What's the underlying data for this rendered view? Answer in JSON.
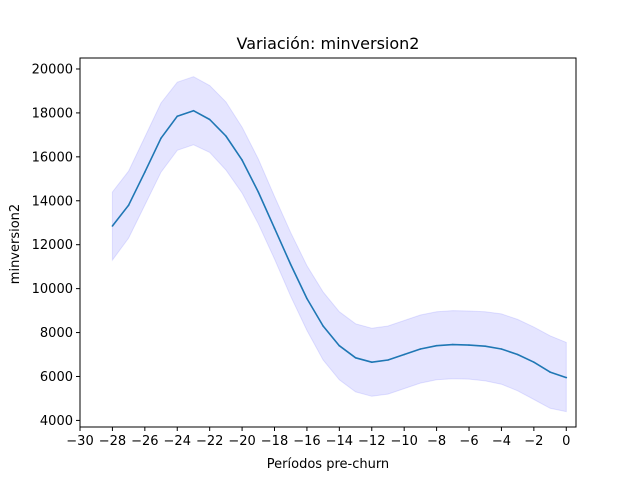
{
  "chart_data": {
    "type": "line",
    "title": "Variación: minversion2",
    "xlabel": "Períodos pre-churn",
    "ylabel": "minversion2",
    "xlim": [
      -30,
      0.6
    ],
    "ylim": [
      3700,
      20500
    ],
    "x_ticks": [
      -30,
      -28,
      -26,
      -24,
      -22,
      -20,
      -18,
      -16,
      -14,
      -12,
      -10,
      -8,
      -6,
      -4,
      -2,
      0
    ],
    "y_ticks": [
      4000,
      6000,
      8000,
      10000,
      12000,
      14000,
      16000,
      18000,
      20000
    ],
    "grid": false,
    "legend": "none",
    "colors": {
      "line": "#1f77b4",
      "band": "#0000ff"
    },
    "series": [
      {
        "x": [
          -28,
          -27,
          -26,
          -25,
          -24,
          -23,
          -22,
          -21,
          -20,
          -19,
          -18,
          -17,
          -16,
          -15,
          -14,
          -13,
          -12,
          -11,
          -10,
          -9,
          -8,
          -7,
          -6,
          -5,
          -4,
          -3,
          -2,
          -1,
          0
        ],
        "values": [
          12850,
          13800,
          15300,
          16850,
          17850,
          18100,
          17700,
          16950,
          15850,
          14400,
          12750,
          11100,
          9550,
          8300,
          7400,
          6850,
          6650,
          6750,
          7000,
          7250,
          7400,
          7450,
          7430,
          7380,
          7250,
          7000,
          6650,
          6200,
          5950
        ],
        "lower": [
          11300,
          12300,
          13800,
          15300,
          16300,
          16550,
          16200,
          15400,
          14350,
          12950,
          11350,
          9650,
          8100,
          6750,
          5850,
          5300,
          5100,
          5200,
          5450,
          5700,
          5850,
          5900,
          5880,
          5800,
          5650,
          5350,
          4950,
          4550,
          4400
        ],
        "upper": [
          14400,
          15350,
          16900,
          18450,
          19400,
          19650,
          19250,
          18500,
          17350,
          15900,
          14200,
          12550,
          11050,
          9850,
          8950,
          8400,
          8200,
          8300,
          8550,
          8800,
          8950,
          9000,
          8980,
          8950,
          8850,
          8600,
          8250,
          7850,
          7550
        ]
      }
    ]
  }
}
